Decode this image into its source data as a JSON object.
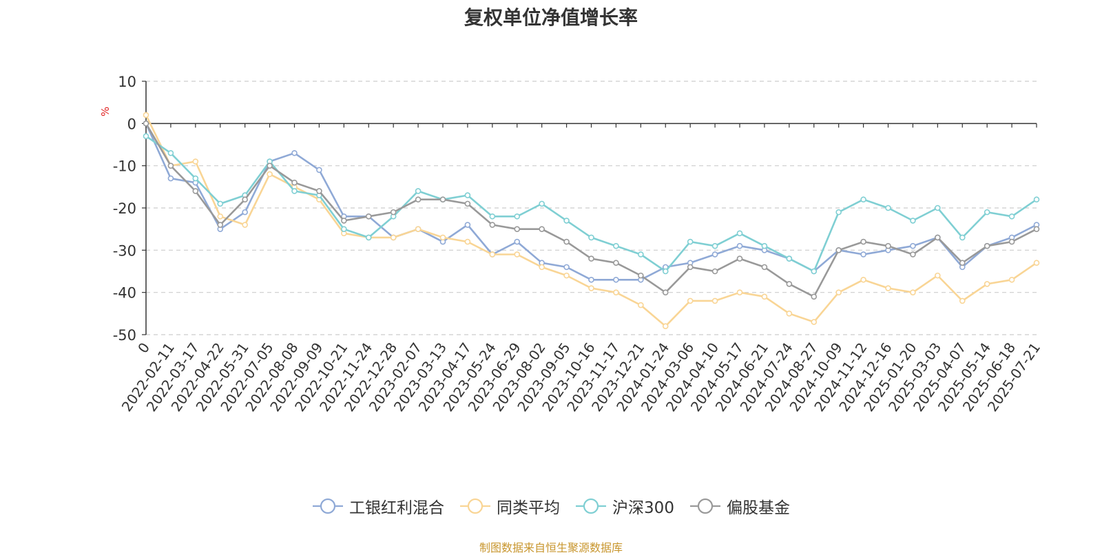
{
  "chart_data": {
    "type": "line",
    "title": "复权单位净值增长率",
    "ylabel": "%",
    "ylim": [
      -50,
      10
    ],
    "yticks": [
      "10",
      "0",
      "-10",
      "-20",
      "-30",
      "-40",
      "-50"
    ],
    "x_tick_labels": [
      "0",
      "2022-02-11",
      "2022-03-17",
      "2022-04-22",
      "2022-05-31",
      "2022-07-05",
      "2022-08-08",
      "2022-09-09",
      "2022-10-21",
      "2022-11-24",
      "2022-12-28",
      "2023-02-07",
      "2023-03-13",
      "2023-04-17",
      "2023-05-24",
      "2023-06-29",
      "2023-08-02",
      "2023-09-05",
      "2023-10-16",
      "2023-11-17",
      "2023-12-21",
      "2024-01-24",
      "2024-03-06",
      "2024-04-10",
      "2024-05-17",
      "2024-06-21",
      "2024-07-24",
      "2024-08-27",
      "2024-10-09",
      "2024-11-12",
      "2024-12-16",
      "2025-01-20",
      "2025-03-03",
      "2025-04-07",
      "2025-05-14",
      "2025-06-18",
      "2025-07-21"
    ],
    "grid": true,
    "legend_position": "bottom",
    "series": [
      {
        "name": "工银红利混合",
        "color": "#8fa9d6",
        "values": [
          0,
          -13,
          -14,
          -25,
          -21,
          -9,
          -7,
          -11,
          -22,
          -22,
          -27,
          -25,
          -28,
          -24,
          -31,
          -28,
          -33,
          -34,
          -37,
          -37,
          -37,
          -34,
          -33,
          -31,
          -29,
          -30,
          -32,
          -35,
          -30,
          -31,
          -30,
          -29,
          -27,
          -34,
          -29,
          -27,
          -24
        ]
      },
      {
        "name": "同类平均",
        "color": "#f9d595",
        "values": [
          2,
          -10,
          -9,
          -22,
          -24,
          -12,
          -15,
          -18,
          -26,
          -27,
          -27,
          -25,
          -27,
          -28,
          -31,
          -31,
          -34,
          -36,
          -39,
          -40,
          -43,
          -48,
          -42,
          -42,
          -40,
          -41,
          -45,
          -47,
          -40,
          -37,
          -39,
          -40,
          -36,
          -42,
          -38,
          -37,
          -33
        ]
      },
      {
        "name": "沪深300",
        "color": "#7fcfd3",
        "values": [
          -3,
          -7,
          -13,
          -19,
          -17,
          -9,
          -16,
          -17,
          -25,
          -27,
          -22,
          -16,
          -18,
          -17,
          -22,
          -22,
          -19,
          -23,
          -27,
          -29,
          -31,
          -35,
          -28,
          -29,
          -26,
          -29,
          -32,
          -35,
          -21,
          -18,
          -20,
          -23,
          -20,
          -27,
          -21,
          -22,
          -18
        ]
      },
      {
        "name": "偏股基金",
        "color": "#999999",
        "values": [
          0,
          -10,
          -16,
          -24,
          -18,
          -10,
          -14,
          -16,
          -23,
          -22,
          -21,
          -18,
          -18,
          -19,
          -24,
          -25,
          -25,
          -28,
          -32,
          -33,
          -36,
          -40,
          -34,
          -35,
          -32,
          -34,
          -38,
          -41,
          -30,
          -28,
          -29,
          -31,
          -27,
          -33,
          -29,
          -28,
          -25
        ]
      }
    ]
  },
  "source_note": "制图数据来自恒生聚源数据库"
}
